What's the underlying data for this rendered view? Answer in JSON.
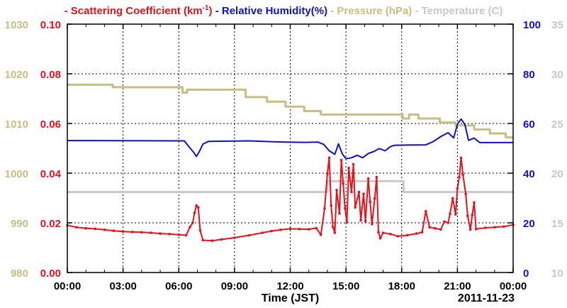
{
  "chart_data": {
    "type": "line",
    "xlabel": "Time (JST)",
    "date_label": "2011-11-23",
    "x_ticks": [
      "00:00",
      "03:00",
      "06:00",
      "09:00",
      "12:00",
      "15:00",
      "18:00",
      "21:00",
      "00:00"
    ],
    "grid": true,
    "legend": {
      "position": "top",
      "items": [
        {
          "prefix": "- Scattering Coefficient (km",
          "sup": "-1",
          "suffix": ")",
          "color": "#e8101a"
        },
        {
          "prefix": "- Relative Humidity(%)",
          "sup": "",
          "suffix": "",
          "color": "#1010c8"
        },
        {
          "prefix": "- Pressure (hPa)",
          "sup": "",
          "suffix": "",
          "color": "#c8be82"
        },
        {
          "prefix": "- Temperature (",
          "sup": "",
          "suffix": "C)",
          "color": "#c8c8c8"
        }
      ]
    },
    "axes": {
      "pressure": {
        "ylim": [
          980,
          1030
        ],
        "ticks": [
          "980",
          "990",
          "1000",
          "1010",
          "1020",
          "1030"
        ],
        "color": "#c8be82",
        "side": "left-outer"
      },
      "scattering": {
        "ylim": [
          0,
          0.1
        ],
        "ticks": [
          "0.00",
          "0.02",
          "0.04",
          "0.06",
          "0.08",
          "0.10"
        ],
        "color": "#e8101a",
        "side": "left-inner"
      },
      "humidity": {
        "ylim": [
          0,
          100
        ],
        "ticks": [
          "0",
          "20",
          "40",
          "60",
          "80",
          "100"
        ],
        "color": "#1010c8",
        "side": "right-inner"
      },
      "temperature": {
        "ylim": [
          10,
          35
        ],
        "ticks": [
          "10",
          "15",
          "20",
          "25",
          "30",
          "35"
        ],
        "color": "#c8c8c8",
        "side": "right-outer"
      }
    },
    "series": [
      {
        "name": "Pressure (hPa)",
        "axis": "pressure",
        "color": "#c8be82",
        "step": true,
        "points": [
          [
            0,
            1017.8
          ],
          [
            2.45,
            1017.3
          ],
          [
            6.2,
            1016.2
          ],
          [
            6.45,
            1016.8
          ],
          [
            9.6,
            1015.3
          ],
          [
            10.75,
            1014.4
          ],
          [
            11.75,
            1013.4
          ],
          [
            12.75,
            1012.5
          ],
          [
            13.65,
            1011.8
          ],
          [
            18.05,
            1011.0
          ],
          [
            18.4,
            1011.8
          ],
          [
            18.9,
            1011.0
          ],
          [
            20.05,
            1010.2
          ],
          [
            20.9,
            1009.6
          ],
          [
            21.9,
            1008.8
          ],
          [
            22.75,
            1008.0
          ],
          [
            23.6,
            1007.2
          ],
          [
            24,
            1007.2
          ]
        ]
      },
      {
        "name": "Temperature (C)",
        "axis": "temperature",
        "color": "#c8c8c8",
        "step": true,
        "points": [
          [
            0,
            18.1
          ],
          [
            13.9,
            18.1
          ],
          [
            14.0,
            19.2
          ],
          [
            18.0,
            19.2
          ],
          [
            18.1,
            18.1
          ],
          [
            24,
            18.1
          ]
        ]
      },
      {
        "name": "Relative Humidity(%)",
        "axis": "humidity",
        "color": "#1010c8",
        "step": false,
        "points": [
          [
            0,
            53.1
          ],
          [
            6.3,
            53.0
          ],
          [
            6.55,
            50.6
          ],
          [
            6.8,
            48.4
          ],
          [
            6.95,
            46.7
          ],
          [
            7.1,
            48.6
          ],
          [
            7.3,
            51.7
          ],
          [
            7.6,
            52.8
          ],
          [
            9.8,
            53.0
          ],
          [
            10.8,
            52.7
          ],
          [
            11.8,
            52.5
          ],
          [
            12.8,
            52.4
          ],
          [
            13.5,
            52.5
          ],
          [
            13.8,
            51.6
          ],
          [
            14.1,
            49.0
          ],
          [
            14.4,
            47.6
          ],
          [
            14.6,
            51.8
          ],
          [
            14.8,
            47.8
          ],
          [
            15.0,
            45.8
          ],
          [
            15.3,
            46.2
          ],
          [
            15.6,
            47.2
          ],
          [
            15.9,
            46.2
          ],
          [
            16.2,
            47.9
          ],
          [
            16.5,
            48.7
          ],
          [
            16.8,
            49.9
          ],
          [
            17.1,
            49.0
          ],
          [
            17.4,
            50.7
          ],
          [
            17.6,
            51.2
          ],
          [
            18.3,
            51.3
          ],
          [
            19.3,
            51.4
          ],
          [
            19.7,
            52.7
          ],
          [
            20.1,
            54.7
          ],
          [
            20.5,
            56.3
          ],
          [
            20.8,
            54.2
          ],
          [
            21.0,
            59.7
          ],
          [
            21.2,
            61.8
          ],
          [
            21.4,
            59.6
          ],
          [
            21.6,
            53.2
          ],
          [
            21.9,
            54.1
          ],
          [
            22.2,
            52.3
          ],
          [
            24,
            52.3
          ]
        ]
      },
      {
        "name": "Scattering Coefficient (km-1)",
        "axis": "scattering",
        "color": "#e8101a",
        "step": false,
        "markers": true,
        "points": [
          [
            0,
            0.019
          ],
          [
            0.5,
            0.0182
          ],
          [
            1.0,
            0.0178
          ],
          [
            1.5,
            0.0176
          ],
          [
            2.0,
            0.0172
          ],
          [
            2.5,
            0.0168
          ],
          [
            3.0,
            0.0165
          ],
          [
            3.5,
            0.0163
          ],
          [
            4.0,
            0.0162
          ],
          [
            4.5,
            0.016
          ],
          [
            5.0,
            0.0157
          ],
          [
            5.5,
            0.0155
          ],
          [
            6.0,
            0.0152
          ],
          [
            6.4,
            0.015
          ],
          [
            6.6,
            0.0183
          ],
          [
            6.75,
            0.02
          ],
          [
            6.85,
            0.024
          ],
          [
            6.95,
            0.027
          ],
          [
            7.05,
            0.0262
          ],
          [
            7.15,
            0.017
          ],
          [
            7.3,
            0.013
          ],
          [
            7.8,
            0.0128
          ],
          [
            8.3,
            0.0133
          ],
          [
            9.0,
            0.014
          ],
          [
            9.8,
            0.015
          ],
          [
            10.5,
            0.016
          ],
          [
            11.0,
            0.0167
          ],
          [
            11.5,
            0.0172
          ],
          [
            12.0,
            0.0176
          ],
          [
            12.5,
            0.0175
          ],
          [
            13.0,
            0.0174
          ],
          [
            13.4,
            0.0179
          ],
          [
            13.65,
            0.0152
          ],
          [
            13.85,
            0.0258
          ],
          [
            14.0,
            0.0398
          ],
          [
            14.1,
            0.0462
          ],
          [
            14.2,
            0.027
          ],
          [
            14.3,
            0.0183
          ],
          [
            14.4,
            0.016
          ],
          [
            14.5,
            0.0332
          ],
          [
            14.65,
            0.0238
          ],
          [
            14.75,
            0.0453
          ],
          [
            14.85,
            0.0358
          ],
          [
            14.95,
            0.0259
          ],
          [
            15.05,
            0.0203
          ],
          [
            15.15,
            0.0421
          ],
          [
            15.3,
            0.0324
          ],
          [
            15.4,
            0.0436
          ],
          [
            15.5,
            0.0262
          ],
          [
            15.7,
            0.0324
          ],
          [
            15.8,
            0.021
          ],
          [
            15.95,
            0.0317
          ],
          [
            16.05,
            0.0207
          ],
          [
            16.2,
            0.0378
          ],
          [
            16.3,
            0.0284
          ],
          [
            16.4,
            0.0195
          ],
          [
            16.55,
            0.0298
          ],
          [
            16.65,
            0.0384
          ],
          [
            16.75,
            0.0162
          ],
          [
            16.85,
            0.0138
          ],
          [
            17.0,
            0.016
          ],
          [
            17.4,
            0.0155
          ],
          [
            17.8,
            0.0146
          ],
          [
            18.3,
            0.015
          ],
          [
            18.8,
            0.0157
          ],
          [
            19.1,
            0.0162
          ],
          [
            19.3,
            0.0247
          ],
          [
            19.5,
            0.0182
          ],
          [
            19.8,
            0.0178
          ],
          [
            20.1,
            0.0173
          ],
          [
            20.3,
            0.0205
          ],
          [
            20.5,
            0.02
          ],
          [
            20.6,
            0.0236
          ],
          [
            20.75,
            0.0299
          ],
          [
            20.9,
            0.0234
          ],
          [
            21.0,
            0.0338
          ],
          [
            21.1,
            0.0384
          ],
          [
            21.2,
            0.0462
          ],
          [
            21.3,
            0.0393
          ],
          [
            21.45,
            0.0316
          ],
          [
            21.55,
            0.0228
          ],
          [
            21.7,
            0.0173
          ],
          [
            21.8,
            0.0232
          ],
          [
            21.9,
            0.0282
          ],
          [
            22.0,
            0.0175
          ],
          [
            22.5,
            0.018
          ],
          [
            23.0,
            0.0182
          ],
          [
            23.5,
            0.0185
          ],
          [
            24,
            0.0192
          ]
        ]
      }
    ]
  }
}
